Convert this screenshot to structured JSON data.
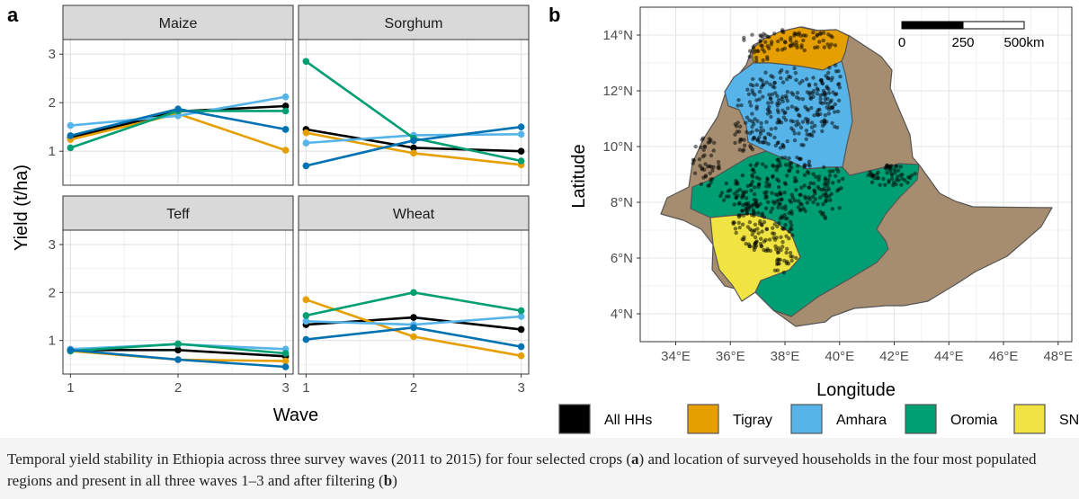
{
  "panel_labels": {
    "a": "a",
    "b": "b"
  },
  "colors": {
    "All HHs": "#000000",
    "Tigray": "#E69F00",
    "Amhara": "#56B4E9",
    "Oromia": "#009E73",
    "SNNP": "#F0E442",
    "Wave1to2line": "#0072B2",
    "map_other": "#a68d6f",
    "strip_bg": "#d9d9d9"
  },
  "caption": {
    "p1": "Temporal yield stability in Ethiopia across three survey waves (2011 to 2015) for four selected crops (",
    "b1": "a",
    "p2": ") and location of surveyed households in the four most populated regions and present in all three waves 1–3 and after filtering (",
    "b2": "b",
    "p3": ")"
  },
  "chart_data": [
    {
      "type": "line",
      "facets": [
        "Maize",
        "Sorghum",
        "Teff",
        "Wheat"
      ],
      "xlabel": "Wave",
      "ylabel": "Yield (t/ha)",
      "x": [
        1,
        2,
        3
      ],
      "xticks": [
        "1",
        "2",
        "3"
      ],
      "ylim": [
        0.3,
        3.3
      ],
      "yticks": [
        "1",
        "2",
        "3"
      ],
      "grid": true,
      "panels": [
        {
          "facet": "Maize",
          "series": [
            {
              "name": "All HHs",
              "color": "#000000",
              "values": [
                1.28,
                1.82,
                1.93
              ]
            },
            {
              "name": "Tigray",
              "color": "#E69F00",
              "values": [
                1.24,
                1.77,
                1.02
              ]
            },
            {
              "name": "Amhara",
              "color": "#56B4E9",
              "values": [
                1.53,
                1.73,
                2.12
              ]
            },
            {
              "name": "Oromia",
              "color": "#009E73",
              "values": [
                1.07,
                1.83,
                1.83
              ]
            },
            {
              "color": "#0072B2",
              "values": [
                1.32,
                1.87,
                1.45
              ]
            }
          ]
        },
        {
          "facet": "Sorghum",
          "series": [
            {
              "name": "All HHs",
              "color": "#000000",
              "values": [
                1.45,
                1.07,
                1.0
              ]
            },
            {
              "name": "Tigray",
              "color": "#E69F00",
              "values": [
                1.38,
                0.96,
                0.72
              ]
            },
            {
              "name": "Amhara",
              "color": "#56B4E9",
              "values": [
                1.17,
                1.33,
                1.35
              ]
            },
            {
              "name": "Oromia",
              "color": "#009E73",
              "values": [
                2.85,
                1.27,
                0.8
              ]
            },
            {
              "color": "#0072B2",
              "values": [
                0.7,
                1.22,
                1.5
              ]
            }
          ]
        },
        {
          "facet": "Teff",
          "series": [
            {
              "name": "All HHs",
              "color": "#000000",
              "values": [
                0.8,
                0.8,
                0.67
              ]
            },
            {
              "name": "Tigray",
              "color": "#E69F00",
              "values": [
                0.78,
                0.6,
                0.57
              ]
            },
            {
              "name": "Amhara",
              "color": "#56B4E9",
              "values": [
                0.82,
                0.92,
                0.82
              ]
            },
            {
              "name": "Oromia",
              "color": "#009E73",
              "values": [
                0.78,
                0.93,
                0.73
              ]
            },
            {
              "color": "#0072B2",
              "values": [
                0.8,
                0.6,
                0.45
              ]
            }
          ]
        },
        {
          "facet": "Wheat",
          "series": [
            {
              "name": "All HHs",
              "color": "#000000",
              "values": [
                1.33,
                1.48,
                1.23
              ]
            },
            {
              "name": "Tigray",
              "color": "#E69F00",
              "values": [
                1.85,
                1.08,
                0.68
              ]
            },
            {
              "name": "Amhara",
              "color": "#56B4E9",
              "values": [
                1.4,
                1.33,
                1.5
              ]
            },
            {
              "name": "Oromia",
              "color": "#009E73",
              "values": [
                1.52,
                2.0,
                1.62
              ]
            },
            {
              "color": "#0072B2",
              "values": [
                1.02,
                1.27,
                0.87
              ]
            }
          ]
        }
      ]
    },
    {
      "type": "map",
      "xlabel": "Longitude",
      "ylabel": "Latitude",
      "xlim": [
        32.7,
        48.5
      ],
      "ylim": [
        3.0,
        15.0
      ],
      "xticks": [
        "34°E",
        "36°E",
        "38°E",
        "40°E",
        "42°E",
        "44°E",
        "46°E",
        "48°E"
      ],
      "yticks": [
        "4°N",
        "6°N",
        "8°N",
        "10°N",
        "12°N",
        "14°N"
      ],
      "scale_bar": [
        "0",
        "250",
        "500km"
      ],
      "legend": [
        "All HHs",
        "Tigray",
        "Amhara",
        "Oromia",
        "SNNP"
      ],
      "legend_position": "bottom",
      "grid": true
    }
  ]
}
